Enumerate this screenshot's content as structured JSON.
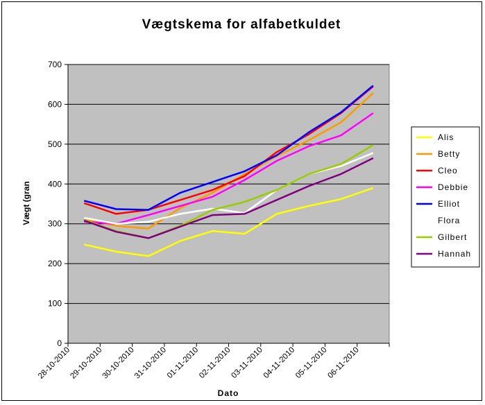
{
  "chart_data": {
    "type": "line",
    "title": "Vægtskema for alfabetkuldet",
    "xlabel": "Dato",
    "ylabel": "Vægt (gran",
    "ylim": [
      0,
      700
    ],
    "yticks": [
      0,
      100,
      200,
      300,
      400,
      500,
      600,
      700
    ],
    "x": [
      "28-10-2010",
      "29-10-2010",
      "30-10-2010",
      "31-10-2010",
      "01-11-2010",
      "02-11-2010",
      "03-11-2010",
      "04-11-2010",
      "05-11-2010",
      "06-11-2010"
    ],
    "x_tick_labels": [
      "28-10-2010",
      "29-10-2010",
      "30-10-2010",
      "31-10-2010",
      "01-11-2010",
      "02-11-2010",
      "03-11-2010",
      "04-11-2010",
      "05-11-2010",
      "06-11-2010"
    ],
    "grid": true,
    "plot_background": "#c0c0c0",
    "legend_position": "right",
    "series": [
      {
        "name": "Alis",
        "color": "#ffff00",
        "values": [
          248,
          230,
          219,
          257,
          282,
          275,
          325,
          345,
          362,
          390
        ]
      },
      {
        "name": "Betty",
        "color": "#ff9900",
        "values": [
          312,
          295,
          288,
          340,
          378,
          425,
          470,
          510,
          555,
          628
        ]
      },
      {
        "name": "Cleo",
        "color": "#ff0000",
        "values": [
          352,
          325,
          335,
          360,
          385,
          420,
          480,
          525,
          578,
          645
        ]
      },
      {
        "name": "Debbie",
        "color": "#ff00ff",
        "values": [
          305,
          300,
          322,
          345,
          368,
          410,
          458,
          495,
          522,
          578
        ]
      },
      {
        "name": "Elliot",
        "color": "#0000ff",
        "values": [
          358,
          337,
          335,
          378,
          405,
          432,
          472,
          530,
          580,
          647
        ]
      },
      {
        "name": "Flora",
        "color": "#ffffff",
        "values": [
          315,
          300,
          305,
          325,
          338,
          327,
          385,
          425,
          445,
          478
        ]
      },
      {
        "name": "Gilbert",
        "color": "#99cc00",
        "values": [
          310,
          282,
          264,
          295,
          335,
          355,
          385,
          425,
          450,
          498
        ]
      },
      {
        "name": "Hannah",
        "color": "#800080",
        "values": [
          308,
          280,
          264,
          293,
          322,
          325,
          360,
          395,
          425,
          465
        ]
      }
    ]
  }
}
